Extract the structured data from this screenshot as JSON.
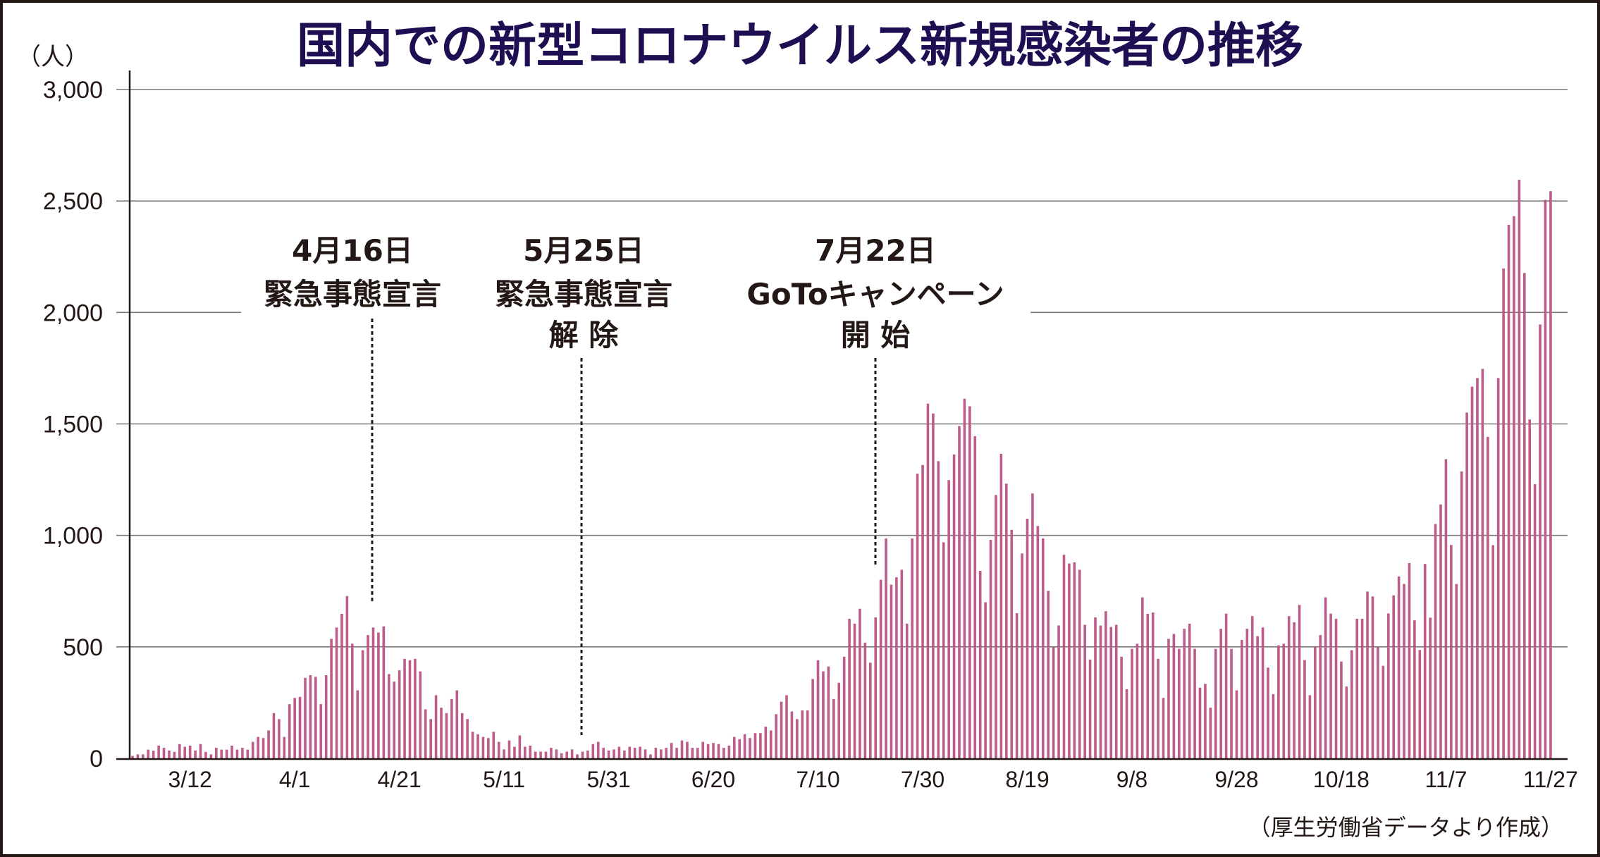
{
  "chart_data": {
    "type": "bar",
    "title": "国内での新型コロナウイルス新規感染者の推移",
    "ylabel": "（人）",
    "xlabel": "",
    "ylim": [
      0,
      3000
    ],
    "yticks": [
      {
        "value": 0,
        "label": "0"
      },
      {
        "value": 500,
        "label": "500"
      },
      {
        "value": 1000,
        "label": "1,000"
      },
      {
        "value": 1500,
        "label": "1,500"
      },
      {
        "value": 2000,
        "label": "2,000"
      },
      {
        "value": 2500,
        "label": "2,500"
      },
      {
        "value": 3000,
        "label": "3,000"
      }
    ],
    "xticks": [
      {
        "day": 11,
        "label": "3/12"
      },
      {
        "day": 31,
        "label": "4/1"
      },
      {
        "day": 51,
        "label": "4/21"
      },
      {
        "day": 71,
        "label": "5/11"
      },
      {
        "day": 91,
        "label": "5/31"
      },
      {
        "day": 111,
        "label": "6/20"
      },
      {
        "day": 131,
        "label": "7/10"
      },
      {
        "day": 151,
        "label": "7/30"
      },
      {
        "day": 171,
        "label": "8/19"
      },
      {
        "day": 191,
        "label": "9/8"
      },
      {
        "day": 211,
        "label": "9/28"
      },
      {
        "day": 231,
        "label": "10/18"
      },
      {
        "day": 251,
        "label": "11/7"
      },
      {
        "day": 271,
        "label": "11/27"
      }
    ],
    "grid": true,
    "series": [
      {
        "name": "新規感染者",
        "color": "#bd5b8a",
        "values": [
          11,
          18,
          18,
          39,
          34,
          57,
          47,
          35,
          29,
          64,
          52,
          57,
          35,
          64,
          29,
          18,
          47,
          39,
          39,
          57,
          39,
          47,
          39,
          74,
          96,
          91,
          125,
          203,
          176,
          96,
          243,
          271,
          276,
          361,
          373,
          366,
          243,
          373,
          536,
          587,
          648,
          728,
          514,
          305,
          485,
          553,
          587,
          564,
          592,
          378,
          344,
          395,
          446,
          440,
          446,
          390,
          220,
          176,
          283,
          227,
          203,
          266,
          305,
          203,
          176,
          119,
          108,
          96,
          91,
          119,
          74,
          40,
          80,
          52,
          103,
          52,
          57,
          30,
          30,
          30,
          47,
          40,
          23,
          30,
          40,
          18,
          30,
          35,
          64,
          74,
          47,
          35,
          40,
          52,
          35,
          52,
          47,
          52,
          40,
          18,
          47,
          40,
          47,
          69,
          47,
          80,
          74,
          47,
          47,
          74,
          64,
          69,
          64,
          47,
          57,
          96,
          86,
          108,
          91,
          113,
          113,
          142,
          125,
          198,
          254,
          283,
          210,
          176,
          215,
          215,
          356,
          440,
          390,
          412,
          266,
          339,
          456,
          626,
          604,
          671,
          519,
          429,
          632,
          801,
          986,
          779,
          812,
          846,
          604,
          986,
          1277,
          1316,
          1591,
          1547,
          1333,
          969,
          1248,
          1363,
          1490,
          1613,
          1579,
          1445,
          841,
          700,
          980,
          1181,
          1366,
          1232,
          1025,
          651,
          919,
          1075,
          1188,
          1042,
          986,
          751,
          498,
          596,
          913,
          874,
          879,
          846,
          599,
          443,
          632,
          596,
          660,
          589,
          599,
          456,
          310,
          491,
          514,
          722,
          648,
          654,
          446,
          271,
          536,
          558,
          491,
          581,
          604,
          491,
          317,
          334,
          227,
          491,
          581,
          649,
          491,
          305,
          531,
          581,
          638,
          548,
          587,
          407,
          288,
          507,
          514,
          638,
          610,
          688,
          441,
          283,
          503,
          553,
          722,
          649,
          626,
          434,
          322,
          485,
          626,
          626,
          748,
          726,
          498,
          415,
          650,
          731,
          816,
          782,
          876,
          619,
          486,
          872,
          631,
          1051,
          1139,
          1342,
          957,
          782,
          1287,
          1551,
          1667,
          1706,
          1747,
          1442,
          956,
          1706,
          2197,
          2393,
          2432,
          2595,
          2177,
          1520,
          1230,
          1946,
          2505,
          2544
        ]
      }
    ],
    "annotations": [
      {
        "day": 46,
        "lines": [
          "4月16日",
          "緊急事態宣言"
        ]
      },
      {
        "day": 85,
        "lines": [
          "5月25日",
          "緊急事態宣言",
          "解 除"
        ]
      },
      {
        "day": 143,
        "lines": [
          "7月22日",
          "GoToキャンペーン",
          "開 始"
        ]
      }
    ],
    "source_note": "（厚生労働省データより作成）"
  }
}
